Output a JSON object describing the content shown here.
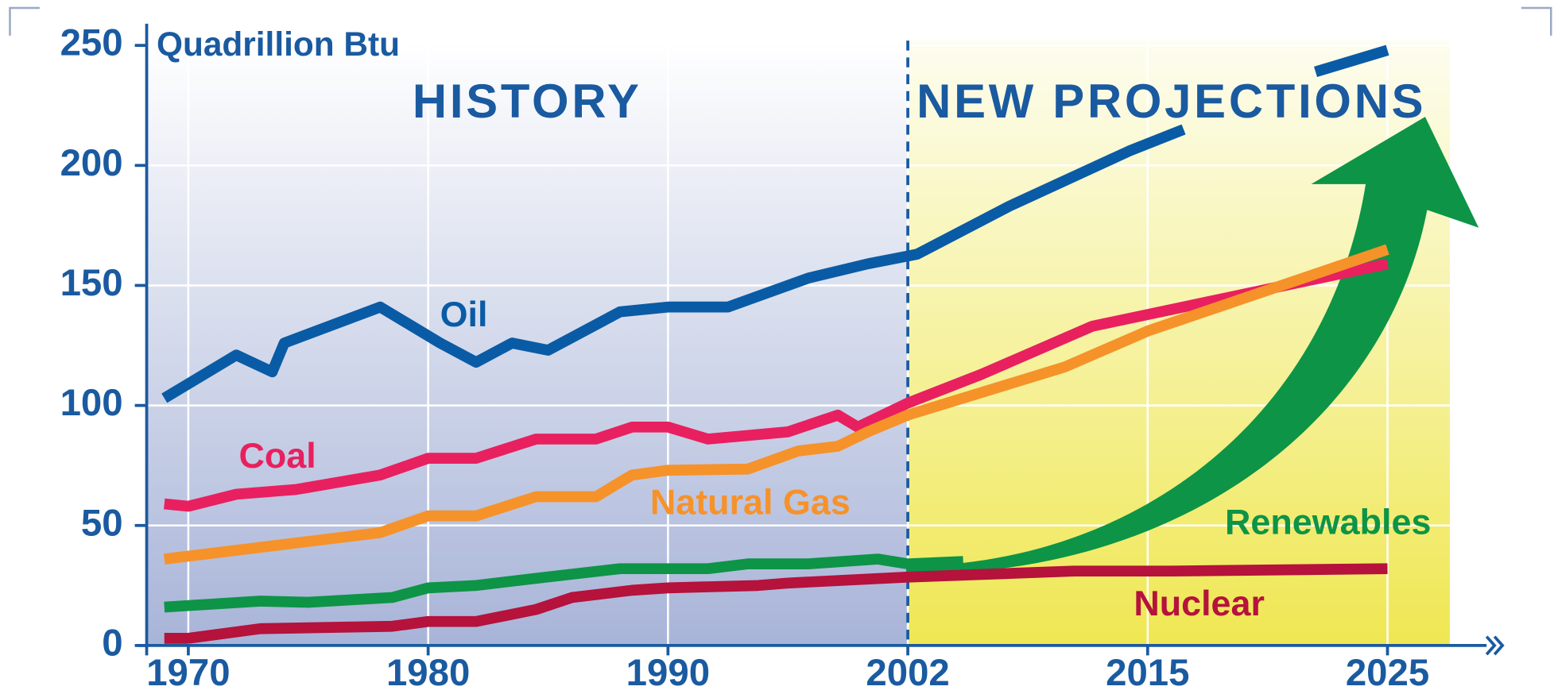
{
  "chart_data": {
    "type": "line",
    "y_label": "Quadrillion Btu",
    "annotations": [
      "HISTORY",
      "NEW PROJECTIONS"
    ],
    "projection_start": 2002,
    "xlim": [
      1968.3,
      2027.6
    ],
    "xticks": [
      1970,
      1980,
      1990,
      2002,
      2015,
      2025
    ],
    "ylim": [
      0,
      252
    ],
    "yticks": [
      0,
      50,
      100,
      150,
      200,
      250
    ],
    "grid": true,
    "series": [
      {
        "name": "Oil",
        "color": "#0a5ba5",
        "x": [
          1969,
          1972,
          1973.5,
          1974,
          1978,
          1980.5,
          1982,
          1983.5,
          1985,
          1988,
          1990,
          1993,
          1997,
          2000,
          2002.5,
          2007.5,
          2014,
          2016.5,
          2019,
          2022,
          2025
        ],
        "values": [
          103,
          121,
          114,
          126,
          141,
          126,
          118,
          126,
          123,
          139,
          141,
          141,
          153,
          159,
          163,
          183,
          206,
          215,
          null,
          239,
          248
        ]
      },
      {
        "name": "Coal",
        "color": "#e8205f",
        "x": [
          1969,
          1970,
          1972,
          1974.5,
          1978,
          1980,
          1982,
          1984.5,
          1987,
          1988.5,
          1990,
          1992,
          1996,
          1998.5,
          1999.5,
          2002,
          2006,
          2012,
          2025
        ],
        "values": [
          59,
          58,
          63,
          65,
          71,
          78,
          78,
          86,
          86,
          91,
          91,
          86,
          89,
          96,
          91,
          101,
          113,
          133,
          159
        ]
      },
      {
        "name": "Natural Gas",
        "color": "#f6922a",
        "x": [
          1969,
          1978,
          1980,
          1982,
          1984.5,
          1987,
          1988.5,
          1990,
          1994,
          1996.5,
          1998.5,
          2000,
          2002,
          2010.5,
          2015,
          2025
        ],
        "values": [
          36,
          47,
          54,
          54,
          62,
          62,
          71,
          73,
          73.5,
          81,
          83,
          89,
          96,
          116,
          131,
          165
        ]
      },
      {
        "name": "Renewables",
        "color": "#0d9447",
        "x": [
          1969,
          1973,
          1975,
          1978.5,
          1980,
          1982,
          1984.5,
          1988,
          1992,
          1994,
          1997,
          2000.5,
          2002,
          2005
        ],
        "values": [
          16,
          18.5,
          18,
          20,
          24,
          25,
          28,
          32,
          32,
          34,
          34,
          36,
          34,
          35
        ]
      },
      {
        "name": "Nuclear",
        "color": "#b5123c",
        "x": [
          1969,
          1970,
          1973,
          1978.5,
          1980,
          1982,
          1984.5,
          1986,
          1988.5,
          1990,
          1994.5,
          1996,
          2002,
          2011,
          2016,
          2025
        ],
        "values": [
          3,
          3,
          7,
          8,
          10,
          10,
          15,
          20,
          23,
          24,
          25,
          26,
          28.5,
          31,
          31,
          32
        ]
      }
    ]
  }
}
